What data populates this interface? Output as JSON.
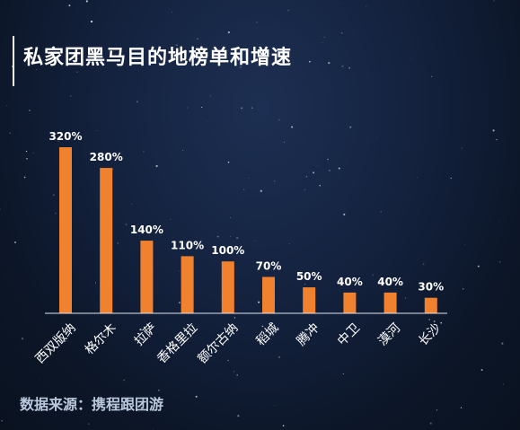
{
  "title": "私家团黑马目的地榜单和增速",
  "source": "数据来源：携程跟团游",
  "colors": {
    "bar": "#f0812e",
    "axis": "#dfe6f0",
    "text": "#ffffff"
  },
  "chart_data": {
    "type": "bar",
    "title": "私家团黑马目的地榜单和增速",
    "categories": [
      "西双版纳",
      "格尔木",
      "拉萨",
      "香格里拉",
      "额尔古纳",
      "稻城",
      "腾冲",
      "中卫",
      "漠河",
      "长沙"
    ],
    "values": [
      320,
      280,
      140,
      110,
      100,
      70,
      50,
      40,
      40,
      30
    ],
    "value_labels": [
      "320%",
      "280%",
      "140%",
      "110%",
      "100%",
      "70%",
      "50%",
      "40%",
      "40%",
      "30%"
    ],
    "ylim": [
      0,
      320
    ],
    "grid": false,
    "legend": "none"
  }
}
